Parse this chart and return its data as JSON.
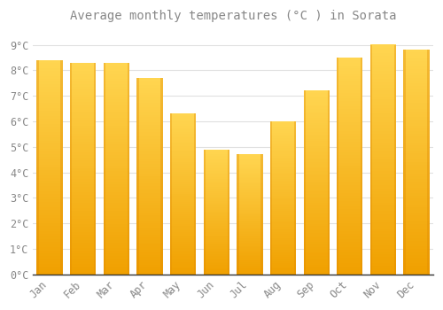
{
  "months": [
    "Jan",
    "Feb",
    "Mar",
    "Apr",
    "May",
    "Jun",
    "Jul",
    "Aug",
    "Sep",
    "Oct",
    "Nov",
    "Dec"
  ],
  "values": [
    8.4,
    8.3,
    8.3,
    7.7,
    6.3,
    4.9,
    4.7,
    6.0,
    7.2,
    8.5,
    9.0,
    8.8
  ],
  "title": "Average monthly temperatures (°C ) in Sorata",
  "ylim": [
    0,
    9.6
  ],
  "yticks": [
    0,
    1,
    2,
    3,
    4,
    5,
    6,
    7,
    8,
    9
  ],
  "ytick_labels": [
    "0°C",
    "1°C",
    "2°C",
    "3°C",
    "4°C",
    "5°C",
    "6°C",
    "7°C",
    "8°C",
    "9°C"
  ],
  "background_color": "#FFFFFF",
  "grid_color": "#E0E0E0",
  "title_fontsize": 10,
  "tick_fontsize": 8.5,
  "bar_color_center": "#FFD040",
  "bar_color_edge": "#F0A000",
  "bar_width": 0.78
}
